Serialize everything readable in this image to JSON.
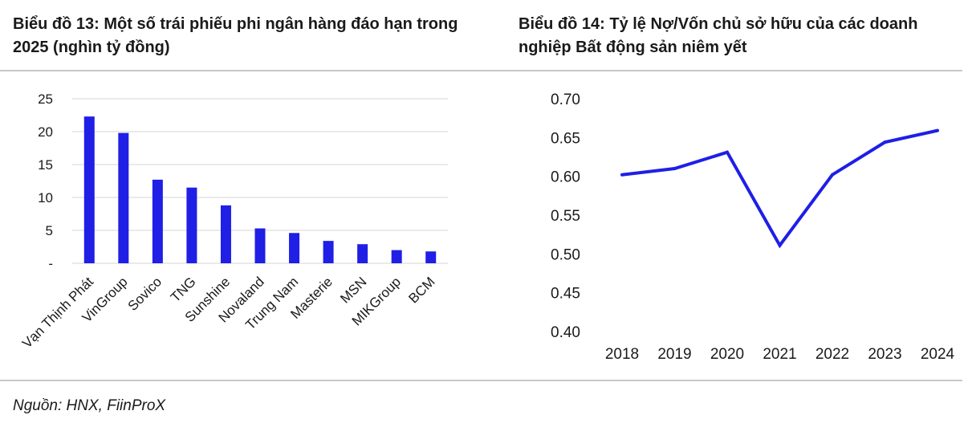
{
  "chart_data": [
    {
      "type": "bar",
      "title": "Biểu đồ 13: Một số trái phiếu phi ngân hàng đáo hạn trong 2025 (nghìn tỷ đồng)",
      "categories": [
        "Vạn Thịnh Phát",
        "VinGroup",
        "Sovico",
        "TNG",
        "Sunshine",
        "Novaland",
        "Trung Nam",
        "Masterie",
        "MSN",
        "MIKGroup",
        "BCM"
      ],
      "values": [
        22.3,
        19.8,
        12.7,
        11.5,
        8.8,
        5.3,
        4.6,
        3.4,
        2.9,
        2.0,
        1.8
      ],
      "ylim": [
        0,
        25
      ],
      "yticks": [
        "-",
        "5",
        "10",
        "15",
        "20",
        "25"
      ],
      "ytick_values": [
        0,
        5,
        10,
        15,
        20,
        25
      ],
      "grid": true,
      "bar_color": "#1f1fe6"
    },
    {
      "type": "line",
      "title": "Biểu đồ 14: Tỷ lệ Nợ/Vốn chủ sở hữu của các doanh nghiệp Bất động sản niêm yết",
      "x": [
        "2018",
        "2019",
        "2020",
        "2021",
        "2022",
        "2023",
        "2024"
      ],
      "values": [
        0.602,
        0.61,
        0.631,
        0.511,
        0.602,
        0.644,
        0.659
      ],
      "ylim": [
        0.4,
        0.7
      ],
      "yticks": [
        "0.40",
        "0.45",
        "0.50",
        "0.55",
        "0.60",
        "0.65",
        "0.70"
      ],
      "ytick_values": [
        0.4,
        0.45,
        0.5,
        0.55,
        0.6,
        0.65,
        0.7
      ],
      "grid": false,
      "line_color": "#1f1fe6"
    }
  ],
  "source": "Nguồn: HNX, FiinProX"
}
